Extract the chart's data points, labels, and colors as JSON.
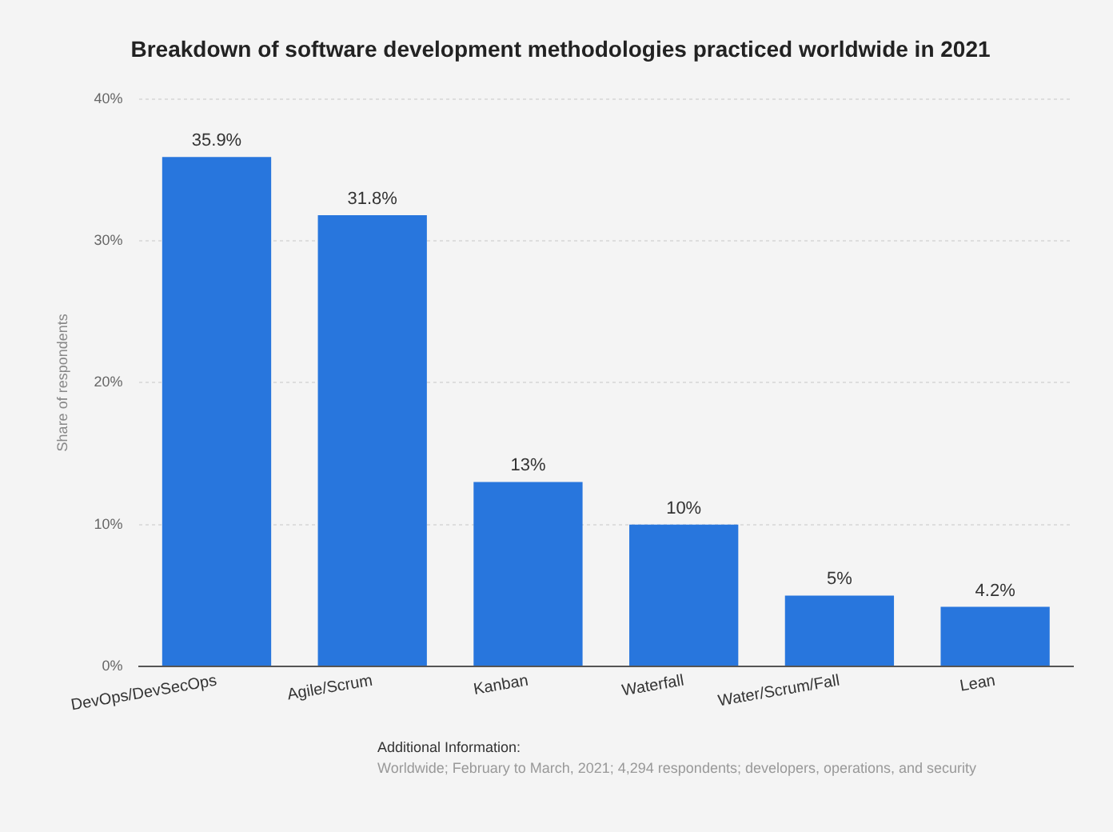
{
  "chart_data": {
    "type": "bar",
    "title": "Breakdown of software development methodologies practiced worldwide in 2021",
    "ylabel": "Share of respondents",
    "categories": [
      "DevOps/DevSecOps",
      "Agile/Scrum",
      "Kanban",
      "Waterfall",
      "Water/Scrum/Fall",
      "Lean"
    ],
    "values": [
      35.9,
      31.8,
      13,
      10,
      5,
      4.2
    ],
    "value_labels": [
      "35.9%",
      "31.8%",
      "13%",
      "10%",
      "5%",
      "4.2%"
    ],
    "color": "#2876dd",
    "ylim": [
      0,
      40
    ],
    "yticks": [
      {
        "value": 0,
        "label": "0%"
      },
      {
        "value": 10,
        "label": "10%"
      },
      {
        "value": 20,
        "label": "20%"
      },
      {
        "value": 30,
        "label": "30%"
      },
      {
        "value": 40,
        "label": "40%"
      }
    ],
    "grid": "y",
    "legend": false,
    "annotations": [
      "Additional Information:",
      "Worldwide; February to March, 2021; 4,294 respondents; developers, operations, and security"
    ]
  }
}
